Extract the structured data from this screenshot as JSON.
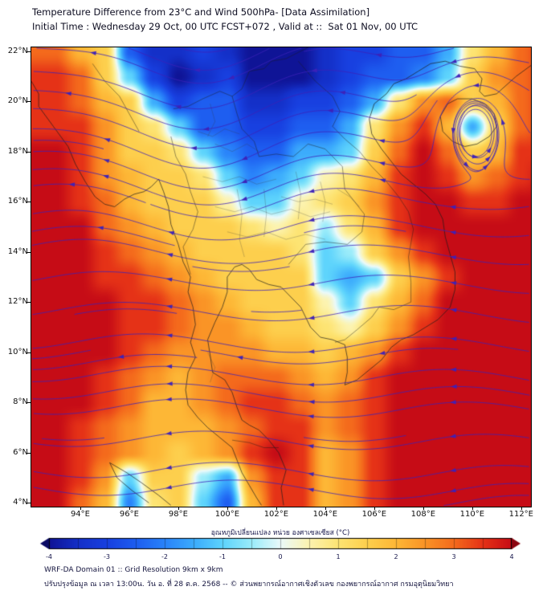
{
  "header": {
    "title_line1": "Temperature Difference from 23°C and Wind 500hPa- [Data Assimilation]",
    "title_line2": "Initial Time : Wednesday 29 Oct, 00 UTC FCST+072 , Valid at ::  Sat 01 Nov, 00 UTC"
  },
  "footer": {
    "line1": "WRF-DA Domain 01 :: Grid Resolution 9km x 9km",
    "line2": "ปรับปรุงข้อมูล ณ เวลา 13:00น. วัน อ. ที่ 28 ต.ค. 2568 -- © ส่วนพยากรณ์อากาศเชิงตัวเลข กองพยากรณ์อากาศ กรมอุตุนิยมวิทยา"
  },
  "chart_data": {
    "type": "heatmap",
    "title": "Temperature Difference from 23°C and Wind 500hPa- [Data Assimilation]",
    "subtitle": "Initial Time : Wednesday 29 Oct, 00 UTC FCST+072 , Valid at ::  Sat 01 Nov, 00 UTC",
    "region": "Thailand / Indochina (WRF-DA Domain 01)",
    "axes": {
      "lon_range": [
        92,
        112.4
      ],
      "lat_range": [
        3.85,
        22.15
      ],
      "xtick_values": [
        94,
        96,
        98,
        100,
        102,
        104,
        106,
        108,
        110,
        112
      ],
      "xtick_labels": [
        "94°E",
        "96°E",
        "98°E",
        "100°E",
        "102°E",
        "104°E",
        "106°E",
        "108°E",
        "110°E",
        "112°E"
      ],
      "ytick_values": [
        22,
        20,
        18,
        16,
        14,
        12,
        10,
        8,
        6,
        4
      ],
      "ytick_labels": [
        "22°N",
        "20°N",
        "18°N",
        "16°N",
        "14°N",
        "12°N",
        "10°N",
        "8°N",
        "6°N",
        "4°N"
      ],
      "grid_lines": false
    },
    "colorbar": {
      "label": "อุณหภูมิเปลี่ยนแปลง หน่วย องศาเซลเซียส (°C)",
      "min": -4,
      "max": 4,
      "tick_values": [
        -4,
        -3,
        -2,
        -1,
        0,
        1,
        2,
        3,
        4
      ],
      "stops": [
        [
          -4,
          [
            15,
            20,
            150
          ]
        ],
        [
          -3.5,
          [
            20,
            48,
            200
          ]
        ],
        [
          -3,
          [
            24,
            64,
            224
          ]
        ],
        [
          -2.5,
          [
            30,
            94,
            240
          ]
        ],
        [
          -2,
          [
            42,
            132,
            250
          ]
        ],
        [
          -1.5,
          [
            60,
            172,
            252
          ]
        ],
        [
          -1,
          [
            94,
            212,
            252
          ]
        ],
        [
          -0.5,
          [
            155,
            236,
            250
          ]
        ],
        [
          0,
          [
            235,
            250,
            250
          ]
        ],
        [
          0.5,
          [
            252,
            243,
            175
          ]
        ],
        [
          1,
          [
            253,
            228,
            115
          ]
        ],
        [
          1.5,
          [
            253,
            207,
            77
          ]
        ],
        [
          2,
          [
            253,
            183,
            54
          ]
        ],
        [
          2.5,
          [
            250,
            148,
            38
          ]
        ],
        [
          3,
          [
            244,
            106,
            28
          ]
        ],
        [
          3.5,
          [
            229,
            50,
            23
          ]
        ],
        [
          4,
          [
            198,
            12,
            22
          ]
        ]
      ],
      "under_color": [
        10,
        10,
        100
      ],
      "over_color": [
        140,
        5,
        16
      ]
    },
    "grid": {
      "units": "°C difference from 23°C",
      "lon_start": 92,
      "lon_step": 1,
      "lat_start": 22,
      "lat_step": -1,
      "values": [
        [
          3,
          3,
          2,
          1.5,
          -2.5,
          -3.5,
          -3.5,
          -3,
          -3.5,
          -4,
          -4,
          -4,
          -3.5,
          -3,
          -3,
          -2.5,
          -2.5,
          -1.5,
          1,
          2,
          3,
          3.5
        ],
        [
          3.5,
          3.5,
          3,
          1.5,
          -1,
          -3,
          -4,
          -3.5,
          -3,
          -4,
          -4,
          -4,
          -3.5,
          -3,
          -2.5,
          -2.5,
          -2,
          -1,
          1.5,
          2.5,
          3,
          3.5
        ],
        [
          3.5,
          3.5,
          3,
          2,
          1.5,
          -1.5,
          -3,
          -2.5,
          -2.5,
          -3.5,
          -3.5,
          -3,
          -3,
          -2.5,
          -1.5,
          1,
          2.5,
          3,
          1.5,
          2,
          3,
          3.5
        ],
        [
          3.5,
          3.5,
          3.5,
          2.5,
          1.5,
          1,
          -1,
          -2.5,
          -2.5,
          -3,
          -3,
          -2.5,
          -2.5,
          -1.5,
          1,
          2.5,
          3.5,
          2,
          -1.5,
          1.5,
          3,
          3.5
        ],
        [
          4,
          4,
          3.5,
          2.5,
          1.5,
          1.5,
          1,
          -1,
          -2,
          -2.5,
          -2.5,
          -1.5,
          -1.5,
          -1,
          1.5,
          3,
          4,
          3,
          1.5,
          2,
          3.5,
          3.5
        ],
        [
          4,
          4,
          3.5,
          2.5,
          2,
          1.5,
          1.5,
          1,
          -1,
          -2,
          -1.5,
          -1,
          0.5,
          1,
          2,
          3.5,
          4,
          3.5,
          2.5,
          3,
          3.5,
          4
        ],
        [
          4,
          4,
          3.5,
          3,
          2,
          1.5,
          1.5,
          1.5,
          0.5,
          -1,
          -1,
          0.5,
          1,
          1.5,
          2.5,
          3.5,
          4,
          4,
          3.5,
          3.5,
          4,
          4
        ],
        [
          4,
          4,
          4,
          3,
          2.5,
          2,
          1.5,
          1.5,
          1.5,
          1,
          0.5,
          1,
          -0.5,
          1,
          2,
          3.5,
          4,
          4,
          4,
          4,
          4,
          4
        ],
        [
          4,
          4,
          4,
          3.5,
          3,
          2.5,
          2,
          1.5,
          1.5,
          1.5,
          1.5,
          1,
          -1,
          -0.5,
          1.5,
          2.5,
          3.5,
          4,
          4,
          4,
          4,
          4
        ],
        [
          4,
          4,
          4,
          3.5,
          3.5,
          3,
          2.5,
          2,
          1.5,
          1.5,
          1.5,
          1.5,
          -1,
          -1.5,
          -1,
          1.5,
          2.5,
          3.5,
          4,
          4,
          4,
          4
        ],
        [
          4,
          4,
          4,
          4,
          3.5,
          3.5,
          3,
          2.5,
          2,
          1.5,
          1.5,
          1.5,
          0.5,
          -1,
          1,
          2,
          3,
          4,
          4,
          4,
          4,
          4
        ],
        [
          4,
          4,
          4,
          4,
          3.5,
          3.5,
          3,
          2.5,
          2.5,
          2,
          1.5,
          1.5,
          1,
          0.5,
          1.5,
          2.5,
          3.5,
          4,
          4,
          4,
          4,
          4
        ],
        [
          4,
          4,
          4,
          4,
          3.5,
          3,
          2.5,
          2.5,
          2.5,
          2.5,
          2,
          2,
          1.5,
          2,
          2.5,
          3.5,
          4,
          4,
          4,
          4,
          4,
          4
        ],
        [
          4,
          4,
          4,
          3.5,
          3,
          2.5,
          2,
          2.5,
          3,
          3,
          3,
          2.5,
          2,
          2.5,
          3.5,
          4,
          4,
          4,
          4,
          4,
          4,
          4
        ],
        [
          4,
          4,
          4,
          3.5,
          3,
          2,
          2,
          2.5,
          3,
          3.5,
          3.5,
          3,
          2.5,
          3,
          3.5,
          4,
          4,
          4,
          4,
          4,
          4,
          4
        ],
        [
          4,
          4,
          3.5,
          3,
          2.5,
          2,
          2,
          2,
          2.5,
          3,
          3.5,
          3.5,
          2.5,
          3,
          3.5,
          4,
          4,
          4,
          4,
          4,
          4,
          4
        ],
        [
          4,
          4,
          3.5,
          3,
          2.5,
          2,
          1.5,
          2,
          2.5,
          3.5,
          4,
          3.5,
          2,
          2.5,
          3.5,
          4,
          4,
          4,
          4,
          4,
          4,
          4
        ],
        [
          4,
          4,
          3.5,
          2.5,
          -1,
          1.5,
          1.5,
          -0.5,
          -1.5,
          2.5,
          3.5,
          3.5,
          2,
          2.5,
          3.5,
          4,
          4,
          4,
          4,
          4,
          4,
          4
        ],
        [
          4,
          4,
          3,
          2,
          -2,
          1,
          1.5,
          -1,
          -2.5,
          2,
          3.5,
          3.5,
          2,
          2.5,
          3.5,
          4,
          4,
          4,
          4,
          4,
          4,
          4
        ]
      ]
    },
    "wind": {
      "plot": "streamlines",
      "level": "500hPa",
      "base_flow": "easterly",
      "trough_axis_lon": 99.5,
      "vortex_center_lonlat": [
        110.1,
        19.3
      ],
      "color": "#3d22b8"
    }
  },
  "colors": {
    "background": "#ffffff",
    "frame": "#000000",
    "coastline": "#1a1a1a",
    "province_line": "#3a3a3a",
    "title_text": "#0d0d21",
    "tick_text": "#111111",
    "colorbar_text": "#15154a"
  }
}
